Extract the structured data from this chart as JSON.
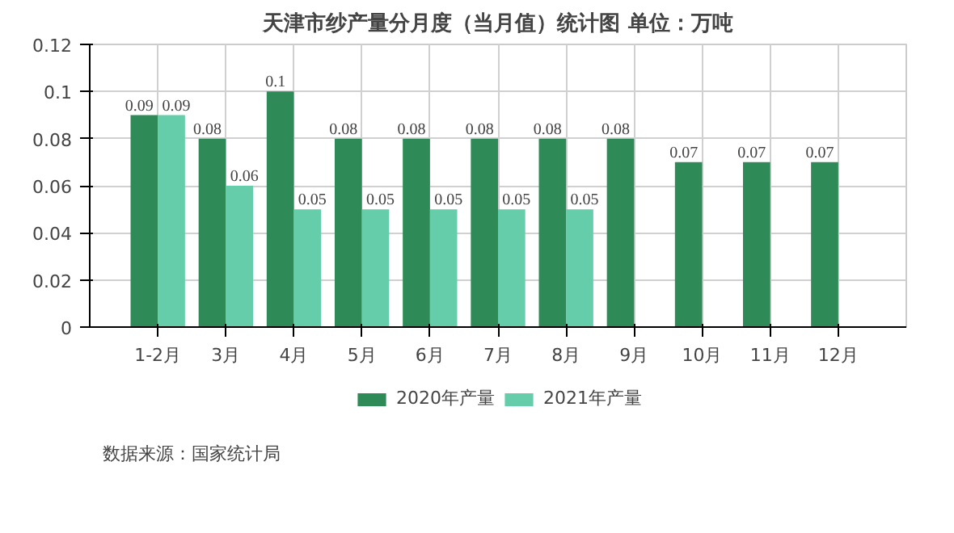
{
  "chart_data": {
    "type": "bar",
    "title": "天津市纱产量分月度（当月值）统计图 单位：万吨",
    "categories": [
      "1-2月",
      "3月",
      "4月",
      "5月",
      "6月",
      "7月",
      "8月",
      "9月",
      "10月",
      "11月",
      "12月"
    ],
    "series": [
      {
        "name": "2020年产量",
        "color": "#2e8b57",
        "values": [
          0.09,
          0.08,
          0.1,
          0.08,
          0.08,
          0.08,
          0.08,
          0.08,
          0.07,
          0.07,
          0.07
        ]
      },
      {
        "name": "2021年产量",
        "color": "#66cdaa",
        "values": [
          0.09,
          0.06,
          0.05,
          0.05,
          0.05,
          0.05,
          0.05,
          null,
          null,
          null,
          null
        ]
      }
    ],
    "ylim": [
      0,
      0.12
    ],
    "yticks": [
      0,
      0.02,
      0.04,
      0.06,
      0.08,
      0.1,
      0.12
    ],
    "grid": true,
    "legend": "bottom",
    "data_labels": true,
    "annotations": [
      "数据来源：国家统计局"
    ]
  }
}
